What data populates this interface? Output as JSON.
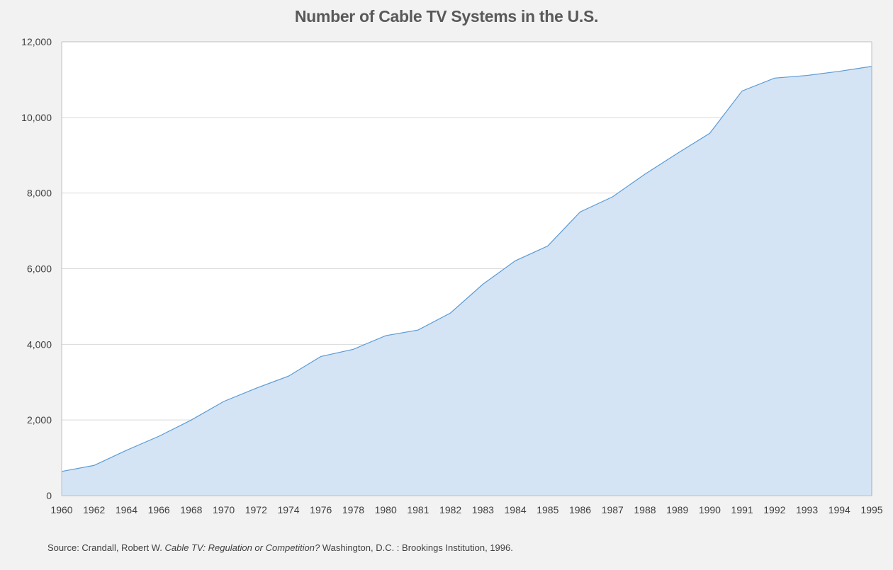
{
  "chart_data": {
    "type": "area",
    "title": "Number of Cable TV Systems in the U.S.",
    "xlabel": "",
    "ylabel": "",
    "categories": [
      "1960",
      "1962",
      "1964",
      "1966",
      "1968",
      "1970",
      "1972",
      "1974",
      "1976",
      "1978",
      "1980",
      "1981",
      "1982",
      "1983",
      "1984",
      "1985",
      "1986",
      "1987",
      "1988",
      "1989",
      "1990",
      "1991",
      "1992",
      "1993",
      "1994",
      "1995"
    ],
    "series": [
      {
        "values": [
          640,
          800,
          1200,
          1570,
          2000,
          2490,
          2840,
          3160,
          3680,
          3870,
          4230,
          4380,
          4830,
          5590,
          6210,
          6600,
          7500,
          7900,
          8500,
          9050,
          9580,
          10700,
          11040,
          11110,
          11220,
          11350
        ]
      }
    ],
    "ylim": [
      0,
      12000
    ],
    "y_ticks": [
      "0",
      "2,000",
      "4,000",
      "6,000",
      "8,000",
      "10,000",
      "12,000"
    ],
    "grid": true,
    "legend": "none",
    "colors": {
      "fill": "#d4e4f5",
      "line": "#5b9bd5",
      "grid": "#d9d9d9",
      "axis": "#bfbfbf",
      "background": "#f2f2f2",
      "plot_background": "#ffffff"
    }
  },
  "source": {
    "prefix": "Source: Crandall, Robert W. ",
    "title": "Cable TV: Regulation or Competition?",
    "suffix": " Washington, D.C. : Brookings Institution, 1996."
  }
}
